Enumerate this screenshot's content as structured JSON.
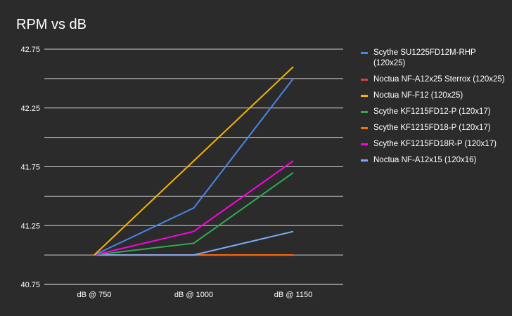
{
  "chart_data": {
    "type": "line",
    "title": "RPM vs dB",
    "xlabel": "",
    "ylabel": "",
    "categories": [
      "dB @ 750",
      "dB @ 1000",
      "dB @ 1150"
    ],
    "ylim": [
      40.75,
      42.75
    ],
    "yticks": [
      "42.75",
      "42.25",
      "41.75",
      "41.25",
      "40.75"
    ],
    "grid": true,
    "legend_position": "right",
    "series": [
      {
        "name": "Scythe SU1225FD12M-RHP (120x25)",
        "color": "#4a86e8",
        "values": [
          41.0,
          41.4,
          42.5
        ]
      },
      {
        "name": "Noctua NF-A12x25 Sterrox (120x25)",
        "color": "#d9412f",
        "values": [
          41.0,
          41.0,
          41.0
        ]
      },
      {
        "name": "Noctua NF-F12 (120x25)",
        "color": "#f4b400",
        "values": [
          41.0,
          41.8,
          42.6
        ]
      },
      {
        "name": "Scythe KF1215FD12-P (120x17)",
        "color": "#34a853",
        "values": [
          41.0,
          41.1,
          41.7
        ]
      },
      {
        "name": "Scythe KF1215FD18-P (120x17)",
        "color": "#ff6d01",
        "values": [
          41.0,
          41.0,
          41.0
        ]
      },
      {
        "name": "Scythe KF1215FD18R-P (120x17)",
        "color": "#ff00e6",
        "values": [
          41.0,
          41.2,
          41.8
        ]
      },
      {
        "name": "Noctua NF-A12x15 (120x16)",
        "color": "#7baaf7",
        "values": [
          41.0,
          41.0,
          41.2
        ]
      }
    ]
  }
}
